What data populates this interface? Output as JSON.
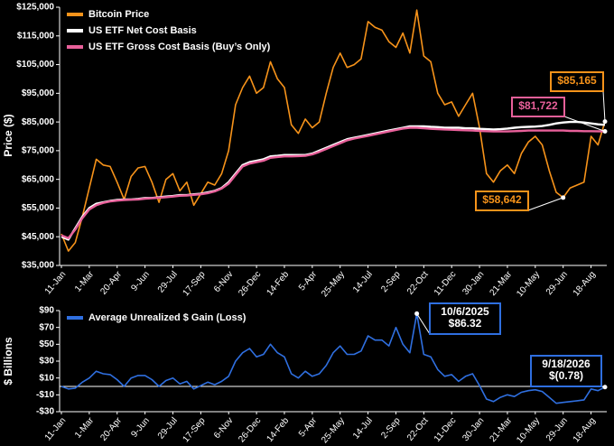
{
  "chart_data": [
    {
      "type": "line",
      "ylabel": "Price ($)",
      "categories": [
        "11-Jan",
        null,
        null,
        null,
        "1-Mar",
        null,
        null,
        null,
        "20-Apr",
        null,
        null,
        null,
        "9-Jun",
        null,
        null,
        null,
        "29-Jul",
        null,
        null,
        null,
        "17-Sep",
        null,
        null,
        null,
        "6-Nov",
        null,
        null,
        null,
        "26-Dec",
        null,
        null,
        null,
        "14-Feb",
        null,
        null,
        null,
        "5-Apr",
        null,
        null,
        null,
        "25-May",
        null,
        null,
        null,
        "14-Jul",
        null,
        null,
        null,
        "2-Sep",
        null,
        null,
        null,
        "22-Oct",
        null,
        null,
        null,
        "11-Dec",
        null,
        null,
        null,
        "30-Jan",
        null,
        null,
        null,
        "21-Mar",
        null,
        null,
        null,
        "10-May",
        null,
        null,
        null,
        "29-Jun",
        null,
        null,
        null,
        "18-Aug",
        null,
        null
      ],
      "ylim": [
        35000,
        125000
      ],
      "yticks": [
        {
          "value": 35000,
          "label": "$35,000"
        },
        {
          "value": 45000,
          "label": "$45,000"
        },
        {
          "value": 55000,
          "label": "$55,000"
        },
        {
          "value": 65000,
          "label": "$65,000"
        },
        {
          "value": 75000,
          "label": "$75,000"
        },
        {
          "value": 85000,
          "label": "$85,000"
        },
        {
          "value": 95000,
          "label": "$95,000"
        },
        {
          "value": 105000,
          "label": "$105,000"
        },
        {
          "value": 115000,
          "label": "$115,000"
        },
        {
          "value": 125000,
          "label": "$125,000"
        }
      ],
      "series": [
        {
          "name": "Bitcoin Price",
          "color": "#f7931a",
          "values": [
            46000,
            40000,
            43000,
            52000,
            62000,
            72000,
            70000,
            69500,
            64000,
            58000,
            66000,
            69000,
            69500,
            64000,
            57000,
            65000,
            67000,
            61000,
            64000,
            56000,
            60000,
            64000,
            63000,
            67000,
            75000,
            91000,
            97000,
            101000,
            95000,
            97000,
            106000,
            100000,
            97000,
            84000,
            81000,
            86000,
            83000,
            85000,
            95000,
            104000,
            109000,
            104000,
            105000,
            107000,
            120000,
            118000,
            117000,
            113000,
            111000,
            116000,
            109000,
            124000,
            108000,
            106000,
            95000,
            91000,
            92000,
            87000,
            91000,
            95000,
            83000,
            67000,
            64000,
            68000,
            70000,
            67000,
            74000,
            78000,
            80000,
            77000,
            68000,
            60500,
            58642,
            62000,
            63000,
            64000,
            80000,
            77000,
            85165
          ]
        },
        {
          "name": "US ETF Net Cost Basis",
          "color": "#ffffff",
          "values": [
            45000,
            44000,
            48000,
            52000,
            55000,
            56500,
            57000,
            57500,
            57800,
            58000,
            58000,
            58200,
            58500,
            58500,
            58800,
            59000,
            59200,
            59500,
            59500,
            59800,
            60000,
            60500,
            61000,
            62000,
            64000,
            67000,
            70000,
            71000,
            71500,
            72000,
            73000,
            73200,
            73500,
            73500,
            73500,
            73500,
            74000,
            75000,
            76000,
            77000,
            78000,
            79000,
            79500,
            80000,
            80500,
            81000,
            81500,
            82000,
            82500,
            83000,
            83500,
            83500,
            83500,
            83300,
            83200,
            83000,
            83000,
            83000,
            82800,
            82800,
            82600,
            82500,
            82400,
            82500,
            82700,
            83000,
            83200,
            83300,
            83400,
            83600,
            84000,
            84500,
            84800,
            85000,
            85000,
            84800,
            84500,
            84200,
            84000
          ]
        },
        {
          "name": "US ETF Gross Cost Basis (Buy’s Only)",
          "color": "#e8609a",
          "values": [
            45500,
            44500,
            47500,
            51500,
            54500,
            56000,
            56800,
            57300,
            57600,
            57800,
            57900,
            58000,
            58300,
            58400,
            58600,
            58800,
            59000,
            59300,
            59400,
            59600,
            59800,
            60200,
            60800,
            61800,
            63500,
            66500,
            69500,
            70500,
            71000,
            71500,
            72500,
            72800,
            73000,
            73000,
            73100,
            73200,
            73700,
            74600,
            75600,
            76600,
            77600,
            78600,
            79200,
            79700,
            80200,
            80700,
            81200,
            81700,
            82200,
            82700,
            83000,
            83000,
            82800,
            82600,
            82500,
            82400,
            82300,
            82200,
            82100,
            82000,
            81900,
            81800,
            81700,
            81700,
            81700,
            81800,
            81900,
            82000,
            82000,
            82000,
            82000,
            82000,
            82000,
            81900,
            81900,
            81800,
            81800,
            81750,
            81722
          ]
        }
      ],
      "annotations": [
        {
          "lines": [
            "$85,165"
          ],
          "color": "#f7931a"
        },
        {
          "lines": [
            "$81,722"
          ],
          "color": "#e8609a"
        },
        {
          "lines": [
            "$58,642"
          ],
          "color": "#f7931a"
        }
      ]
    },
    {
      "type": "line",
      "ylabel": "$ Billions",
      "categories": [
        "11-Jan",
        null,
        null,
        null,
        "1-Mar",
        null,
        null,
        null,
        "20-Apr",
        null,
        null,
        null,
        "9-Jun",
        null,
        null,
        null,
        "29-Jul",
        null,
        null,
        null,
        "17-Sep",
        null,
        null,
        null,
        "6-Nov",
        null,
        null,
        null,
        "26-Dec",
        null,
        null,
        null,
        "14-Feb",
        null,
        null,
        null,
        "5-Apr",
        null,
        null,
        null,
        "25-May",
        null,
        null,
        null,
        "14-Jul",
        null,
        null,
        null,
        "2-Sep",
        null,
        null,
        null,
        "22-Oct",
        null,
        null,
        null,
        "11-Dec",
        null,
        null,
        null,
        "30-Jan",
        null,
        null,
        null,
        "21-Mar",
        null,
        null,
        null,
        "10-May",
        null,
        null,
        null,
        "29-Jun",
        null,
        null,
        null,
        "18-Aug",
        null,
        null
      ],
      "ylim": [
        -30,
        90
      ],
      "yticks": [
        {
          "value": -30,
          "label": "-$30"
        },
        {
          "value": -10,
          "label": "-$10"
        },
        {
          "value": 10,
          "label": "$10"
        },
        {
          "value": 30,
          "label": "$30"
        },
        {
          "value": 50,
          "label": "$50"
        },
        {
          "value": 70,
          "label": "$70"
        },
        {
          "value": 90,
          "label": "$90"
        }
      ],
      "hline": 0,
      "series": [
        {
          "name": "Average Unrealized $ Gain (Loss)",
          "color": "#2f6fe0",
          "values": [
            0,
            -3,
            -2,
            5,
            10,
            18,
            15,
            14,
            8,
            0,
            10,
            13,
            13,
            8,
            0,
            7,
            10,
            3,
            6,
            -3,
            1,
            5,
            2,
            6,
            12,
            30,
            40,
            45,
            35,
            38,
            50,
            40,
            35,
            15,
            10,
            18,
            12,
            15,
            25,
            40,
            48,
            38,
            38,
            42,
            60,
            55,
            55,
            48,
            70,
            50,
            40,
            86.32,
            38,
            35,
            20,
            12,
            14,
            6,
            12,
            15,
            1,
            -15,
            -18,
            -13,
            -10,
            -12,
            -7,
            -5,
            -4,
            -6,
            -13,
            -20,
            -19,
            -18,
            -17,
            -16,
            -3,
            -5,
            -0.78
          ]
        }
      ],
      "annotations": [
        {
          "lines": [
            "10/6/2025",
            "$86.32"
          ],
          "color": "#2f6fe0"
        },
        {
          "lines": [
            "9/18/2026",
            "$(0.78)"
          ],
          "color": "#2f6fe0"
        }
      ]
    }
  ]
}
